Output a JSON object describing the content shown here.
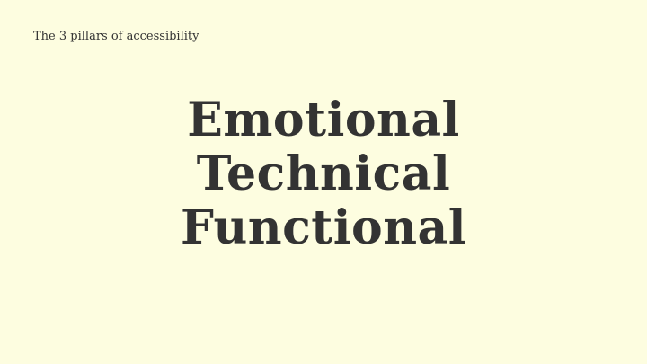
{
  "slide": {
    "header_title": "The 3 pillars of accessibility",
    "pillars": [
      "Emotional",
      "Technical",
      "Functional"
    ]
  },
  "colors": {
    "background": "#fdfde0",
    "text": "#333333",
    "rule": "#9a9a90"
  }
}
